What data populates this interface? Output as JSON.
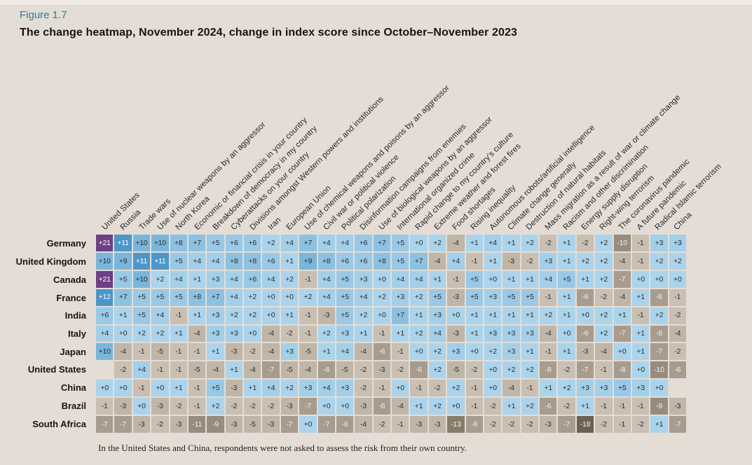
{
  "figure": {
    "label": "Figure 1.7",
    "title": "The change heatmap, November 2024, change in index score since October–November 2023",
    "footnote": "In the United States and China, respondents were not asked to assess the risk from their own country."
  },
  "colors": {
    "background": "#e4ddd5",
    "top_strip": "#efeae3",
    "figure_label": "#2b7ca6",
    "heading_text": "#141414",
    "column_label_text": "#262626",
    "cell_text_dark": "#2d2d2d",
    "cell_text_light": "#ffffff"
  },
  "chart_data": {
    "type": "heatmap",
    "title": "The change heatmap, November 2024, change in index score since October–November 2023",
    "value_meaning": "change in index score since October–November 2023",
    "legend_position": "none",
    "columns": [
      "United States",
      "Russia",
      "Trade wars",
      "Use of nuclear weapons by an aggressor",
      "North Korea",
      "Economic or financial crisis in your country",
      "Breakdown of democracy in my country",
      "Cyberattacks on your country",
      "Divisions amongst Western powers and institutions",
      "Iran",
      "European Union",
      "Use of chemical weapons and poisons by an aggressor",
      "Civil war or political violence",
      "Political polarization",
      "Disinformation campaigns from enemies",
      "Use of biological weapons by an aggressor",
      "International organized crime",
      "Rapid change to my country's culture",
      "Extreme weather and forest fires",
      "Food shortages",
      "Rising inequality",
      "Autonomous robots/artificial intelligence",
      "Climate change generally",
      "Destruction of natural habitats",
      "Mass migration as a result of war or climate change",
      "Racism and other discrimination",
      "Energy supply disruption",
      "Right-wing terrorism",
      "The coronavirus pandemic",
      "A future pandemic",
      "Radical Islamic terrorism",
      "China"
    ],
    "rows": [
      "Germany",
      "United Kingdom",
      "Canada",
      "France",
      "India",
      "Italy",
      "Japan",
      "United States",
      "China",
      "Brazil",
      "South Africa"
    ],
    "values": [
      [
        21,
        11,
        10,
        10,
        8,
        7,
        5,
        6,
        6,
        2,
        4,
        7,
        4,
        4,
        6,
        7,
        5,
        0,
        2,
        -4,
        1,
        4,
        1,
        2,
        -2,
        1,
        -2,
        2,
        -10,
        -1,
        3,
        3
      ],
      [
        10,
        9,
        11,
        11,
        5,
        4,
        4,
        8,
        8,
        6,
        1,
        9,
        8,
        6,
        6,
        8,
        5,
        7,
        -4,
        4,
        -1,
        1,
        -3,
        -2,
        3,
        1,
        2,
        2,
        -4,
        -1,
        2,
        2
      ],
      [
        21,
        5,
        10,
        2,
        4,
        1,
        3,
        4,
        6,
        4,
        2,
        -1,
        4,
        5,
        3,
        0,
        4,
        4,
        1,
        -1,
        5,
        0,
        1,
        1,
        4,
        5,
        1,
        2,
        -7,
        0,
        0,
        0
      ],
      [
        12,
        7,
        5,
        5,
        5,
        8,
        7,
        4,
        2,
        0,
        0,
        2,
        4,
        5,
        4,
        2,
        3,
        2,
        5,
        -3,
        5,
        3,
        5,
        5,
        -1,
        1,
        -6,
        -2,
        -4,
        1,
        -6,
        -1
      ],
      [
        6,
        1,
        5,
        4,
        -1,
        1,
        3,
        2,
        2,
        0,
        1,
        -1,
        -3,
        5,
        2,
        0,
        7,
        1,
        3,
        0,
        1,
        1,
        1,
        1,
        2,
        1,
        0,
        2,
        1,
        -1,
        2,
        -2
      ],
      [
        4,
        0,
        2,
        2,
        1,
        -4,
        3,
        3,
        0,
        -4,
        -2,
        -1,
        2,
        3,
        1,
        -1,
        1,
        2,
        4,
        -3,
        1,
        3,
        3,
        3,
        -4,
        0,
        -6,
        2,
        -7,
        1,
        -8,
        -4
      ],
      [
        10,
        -4,
        -1,
        -5,
        -1,
        -1,
        1,
        -3,
        -2,
        -4,
        3,
        -5,
        1,
        4,
        -4,
        -6,
        -1,
        0,
        2,
        3,
        0,
        2,
        3,
        1,
        -1,
        1,
        -3,
        -4,
        0,
        1,
        -7,
        -2
      ],
      [
        null,
        -2,
        4,
        -1,
        -1,
        -5,
        -4,
        1,
        -4,
        -7,
        -5,
        -4,
        -6,
        -5,
        -2,
        -3,
        -2,
        -6,
        2,
        -5,
        -2,
        0,
        2,
        2,
        -8,
        -2,
        -7,
        -1,
        -8,
        0,
        -10,
        -6
      ],
      [
        0,
        0,
        -1,
        0,
        1,
        -1,
        5,
        -3,
        1,
        4,
        2,
        3,
        4,
        3,
        -2,
        -1,
        0,
        -1,
        -2,
        2,
        -1,
        0,
        -4,
        -1,
        1,
        2,
        3,
        3,
        5,
        3,
        0,
        null
      ],
      [
        -1,
        -3,
        0,
        -3,
        -2,
        -1,
        2,
        -2,
        -2,
        -2,
        -3,
        -7,
        0,
        0,
        -3,
        -6,
        -4,
        1,
        2,
        0,
        -1,
        -2,
        1,
        2,
        -6,
        -2,
        1,
        -1,
        -1,
        -1,
        -9,
        -3
      ],
      [
        -7,
        -7,
        -3,
        -2,
        -3,
        -11,
        -9,
        -3,
        -5,
        -3,
        -7,
        0,
        -7,
        -6,
        -4,
        -2,
        -1,
        -3,
        -3,
        -13,
        -8,
        -2,
        -2,
        -2,
        -3,
        -7,
        -18,
        -2,
        -1,
        -2,
        1,
        -7
      ]
    ],
    "color_scale": [
      {
        "min": 20,
        "color": "#6d4085",
        "text": "#ffffff"
      },
      {
        "min": 11,
        "color": "#4c97c9",
        "text": "#ffffff"
      },
      {
        "min": 9,
        "color": "#79b6dc",
        "text": "#2d2d2d"
      },
      {
        "min": 7,
        "color": "#8dc1e2",
        "text": "#2d2d2d"
      },
      {
        "min": 5,
        "color": "#99c9e7",
        "text": "#2d2d2d"
      },
      {
        "min": 3,
        "color": "#a3cfe9",
        "text": "#2d2d2d"
      },
      {
        "min": 0,
        "color": "#abd4ec",
        "text": "#2d2d2d"
      },
      {
        "min": -2,
        "color": "#c9bfb2",
        "text": "#2d2d2d"
      },
      {
        "min": -5,
        "color": "#c0b6a8",
        "text": "#2d2d2d"
      },
      {
        "min": -8,
        "color": "#a79c8e",
        "text": "#f4f1eb"
      },
      {
        "min": -11,
        "color": "#978c7e",
        "text": "#f4f1eb"
      },
      {
        "min": -15,
        "color": "#877d6d",
        "text": "#f4f1eb"
      },
      {
        "min": -99,
        "color": "#6b6253",
        "text": "#f4f1eb"
      }
    ]
  }
}
